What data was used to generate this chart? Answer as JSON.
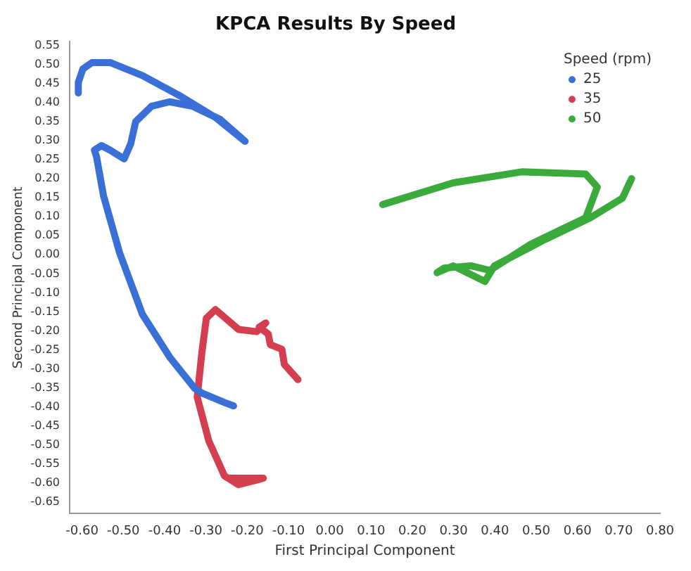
{
  "chart_data": {
    "type": "line",
    "title": "KPCA Results By Speed",
    "xlabel": "First Principal Component",
    "ylabel": "Second Principal Component",
    "legend_title": "Speed (rpm)",
    "legend": "top right",
    "grid": false,
    "marker": "none",
    "line_style": "solid",
    "xlim": [
      -0.63,
      0.8
    ],
    "ylim": [
      -0.68,
      0.56
    ],
    "xticks": [
      {
        "value": -0.6,
        "label": "-0.60"
      },
      {
        "value": -0.5,
        "label": "-0.50"
      },
      {
        "value": -0.4,
        "label": "-0.40"
      },
      {
        "value": -0.3,
        "label": "-0.30"
      },
      {
        "value": -0.2,
        "label": "-0.20"
      },
      {
        "value": -0.1,
        "label": "-0.10"
      },
      {
        "value": 0,
        "label": "0.00"
      },
      {
        "value": 0.1,
        "label": "0.10"
      },
      {
        "value": 0.2,
        "label": "0.20"
      },
      {
        "value": 0.3,
        "label": "0.30"
      },
      {
        "value": 0.4,
        "label": "0.40"
      },
      {
        "value": 0.5,
        "label": "0.50"
      },
      {
        "value": 0.6,
        "label": "0.60"
      },
      {
        "value": 0.7,
        "label": "0.70"
      },
      {
        "value": 0.8,
        "label": "0.80"
      }
    ],
    "yticks": [
      {
        "value": 0.55,
        "label": "0.55"
      },
      {
        "value": 0.5,
        "label": "0.50"
      },
      {
        "value": 0.45,
        "label": "0.45"
      },
      {
        "value": 0.4,
        "label": "0.40"
      },
      {
        "value": 0.35,
        "label": "0.35"
      },
      {
        "value": 0.3,
        "label": "0.30"
      },
      {
        "value": 0.25,
        "label": "0.25"
      },
      {
        "value": 0.2,
        "label": "0.20"
      },
      {
        "value": 0.15,
        "label": "0.15"
      },
      {
        "value": 0.1,
        "label": "0.10"
      },
      {
        "value": 0.05,
        "label": "0.05"
      },
      {
        "value": 0,
        "label": "0.00"
      },
      {
        "value": -0.05,
        "label": "-0.05"
      },
      {
        "value": -0.1,
        "label": "-0.10"
      },
      {
        "value": -0.15,
        "label": "-0.15"
      },
      {
        "value": -0.2,
        "label": "-0.20"
      },
      {
        "value": -0.25,
        "label": "-0.25"
      },
      {
        "value": -0.3,
        "label": "-0.30"
      },
      {
        "value": -0.35,
        "label": "-0.35"
      },
      {
        "value": -0.4,
        "label": "-0.40"
      },
      {
        "value": -0.45,
        "label": "-0.45"
      },
      {
        "value": -0.5,
        "label": "-0.50"
      },
      {
        "value": -0.55,
        "label": "-0.55"
      },
      {
        "value": -0.6,
        "label": "-0.60"
      },
      {
        "value": -0.65,
        "label": "-0.65"
      }
    ],
    "series": [
      {
        "name": "25",
        "color": "#3a6fd8",
        "x": [
          -0.233,
          -0.255,
          -0.31,
          -0.327,
          -0.387,
          -0.454,
          -0.509,
          -0.548,
          -0.565,
          -0.57,
          -0.553,
          -0.532,
          -0.498,
          -0.482,
          -0.47,
          -0.432,
          -0.388,
          -0.332,
          -0.266,
          -0.205,
          -0.277,
          -0.365,
          -0.454,
          -0.532,
          -0.576,
          -0.598,
          -0.609,
          -0.609
        ],
        "values": [
          -0.397,
          -0.388,
          -0.363,
          -0.351,
          -0.27,
          -0.156,
          0.005,
          0.155,
          0.258,
          0.275,
          0.287,
          0.275,
          0.252,
          0.292,
          0.35,
          0.39,
          0.402,
          0.39,
          0.356,
          0.298,
          0.361,
          0.419,
          0.471,
          0.505,
          0.505,
          0.488,
          0.453,
          0.425
        ]
      },
      {
        "name": "35",
        "color": "#d43f4f",
        "x": [
          -0.077,
          -0.11,
          -0.116,
          -0.144,
          -0.149,
          -0.171,
          -0.155,
          -0.177,
          -0.221,
          -0.277,
          -0.299,
          -0.31,
          -0.321,
          -0.293,
          -0.255,
          -0.221,
          -0.177,
          -0.161,
          -0.244
        ],
        "values": [
          -0.328,
          -0.288,
          -0.248,
          -0.236,
          -0.208,
          -0.19,
          -0.179,
          -0.202,
          -0.196,
          -0.144,
          -0.167,
          -0.259,
          -0.374,
          -0.489,
          -0.581,
          -0.604,
          -0.592,
          -0.587,
          -0.587
        ]
      },
      {
        "name": "50",
        "color": "#3aaa3a",
        "x": [
          0.128,
          0.299,
          0.465,
          0.62,
          0.648,
          0.62,
          0.554,
          0.487,
          0.388,
          0.343,
          0.277,
          0.26,
          0.299,
          0.376,
          0.399,
          0.521,
          0.631,
          0.709,
          0.731
        ],
        "values": [
          0.132,
          0.189,
          0.218,
          0.212,
          0.178,
          0.097,
          0.063,
          0.028,
          -0.041,
          -0.029,
          -0.035,
          -0.047,
          -0.029,
          -0.07,
          -0.029,
          0.04,
          0.097,
          0.149,
          0.2
        ]
      }
    ]
  }
}
